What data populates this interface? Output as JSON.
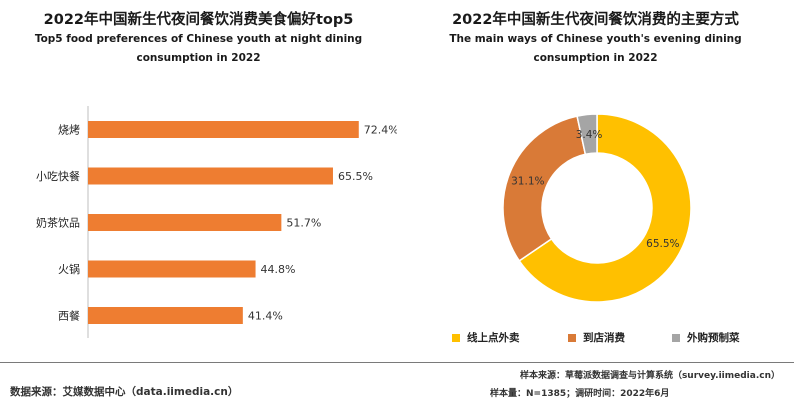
{
  "left_chart": {
    "title": "2022年中国新生代夜间餐饮消费美食偏好top5",
    "subtitle_line1": "Top5 food preferences of Chinese youth at night dining",
    "subtitle_line2": "consumption in 2022"
  },
  "right_chart": {
    "title": "2022年中国新生代夜间餐饮消费的主要方式",
    "subtitle_line1": "The main ways of Chinese youth's evening dining",
    "subtitle_line2": "consumption in 2022"
  },
  "footer": {
    "source_left": "数据来源：艾媒数据中心（data.iimedia.cn）",
    "sample_source": "样本来源：草莓派数据调查与计算系统（survey.iimedia.cn）",
    "sample_size": "样本量：N=1385；调研时间：2022年6月"
  },
  "colors": {
    "bar": "#EE7D31",
    "takeout": "#FFC000",
    "dine_in": "#D97A37",
    "other": "#A5A5A5"
  },
  "chart_data": [
    {
      "type": "bar",
      "orientation": "horizontal",
      "categories": [
        "烧烤",
        "小吃快餐",
        "奶茶饮品",
        "火锅",
        "西餐"
      ],
      "values": [
        72.4,
        65.5,
        51.7,
        44.8,
        41.4
      ],
      "value_labels": [
        "72.4%",
        "65.5%",
        "51.7%",
        "44.8%",
        "41.4%"
      ],
      "xlim": [
        0,
        100
      ]
    },
    {
      "type": "pie",
      "donut": true,
      "categories": [
        "线上点外卖",
        "到店消费",
        "外购预制菜"
      ],
      "values": [
        65.5,
        31.1,
        3.4
      ],
      "value_labels": [
        "65.5%",
        "31.1%",
        "3.4%"
      ],
      "legend_position": "bottom"
    }
  ]
}
